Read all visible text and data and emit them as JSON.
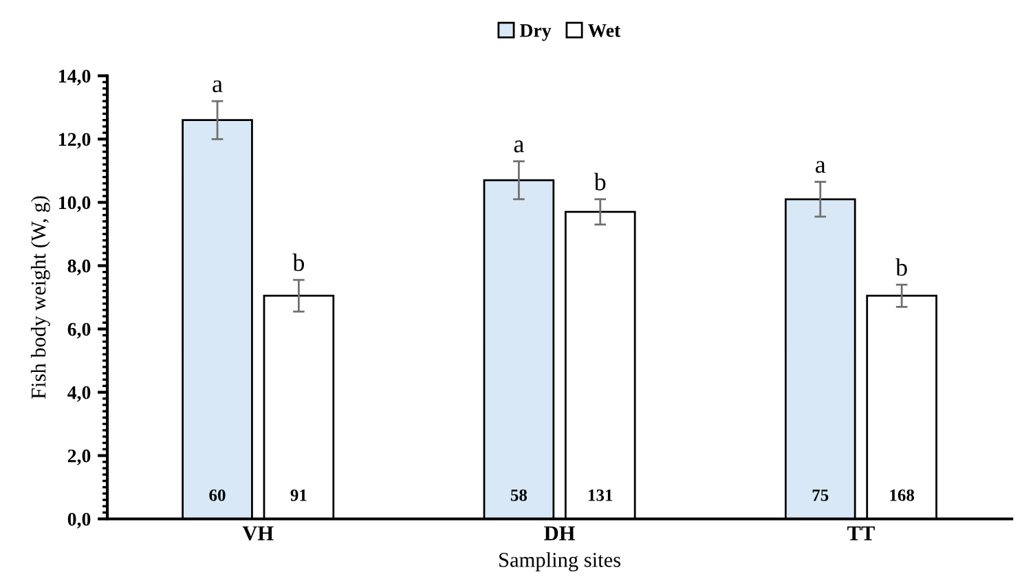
{
  "chart_data": {
    "type": "bar",
    "xlabel": "Sampling sites",
    "ylabel": "Fish body weight (W, g)",
    "categories": [
      "VH",
      "DH",
      "TT"
    ],
    "series": [
      {
        "name": "Dry",
        "color": "#d8e8f6",
        "values": [
          12.6,
          10.7,
          10.1
        ],
        "errors": [
          0.6,
          0.6,
          0.55
        ],
        "value_labels": [
          "a",
          "a",
          "a"
        ]
      },
      {
        "name": "Wet",
        "color": "#ffffff",
        "values": [
          7.05,
          9.7,
          7.05
        ],
        "errors": [
          0.5,
          0.4,
          0.35
        ],
        "value_labels": [
          "b",
          "b",
          "b"
        ]
      }
    ],
    "annotations": [
      {
        "text": "60",
        "x": "VH",
        "y": 0.7
      },
      {
        "text": "91",
        "x": "VH",
        "y": 0.7
      },
      {
        "text": "58",
        "x": "DH",
        "y": 0.7
      },
      {
        "text": "131",
        "x": "DH",
        "y": 0.7
      },
      {
        "text": "75",
        "x": "TT",
        "y": 0.7
      },
      {
        "text": "168",
        "x": "TT",
        "y": 0.7
      }
    ],
    "ylim": [
      0,
      14
    ],
    "yticks": [
      {
        "value": 0,
        "label": "0,0"
      },
      {
        "value": 2,
        "label": "2,0"
      },
      {
        "value": 4,
        "label": "4,0"
      },
      {
        "value": 6,
        "label": "6,0"
      },
      {
        "value": 8,
        "label": "8,0"
      },
      {
        "value": 10,
        "label": "10,0"
      },
      {
        "value": 12,
        "label": "12,0"
      },
      {
        "value": 14,
        "label": "14,0"
      }
    ],
    "legend": "top",
    "grid": false
  }
}
